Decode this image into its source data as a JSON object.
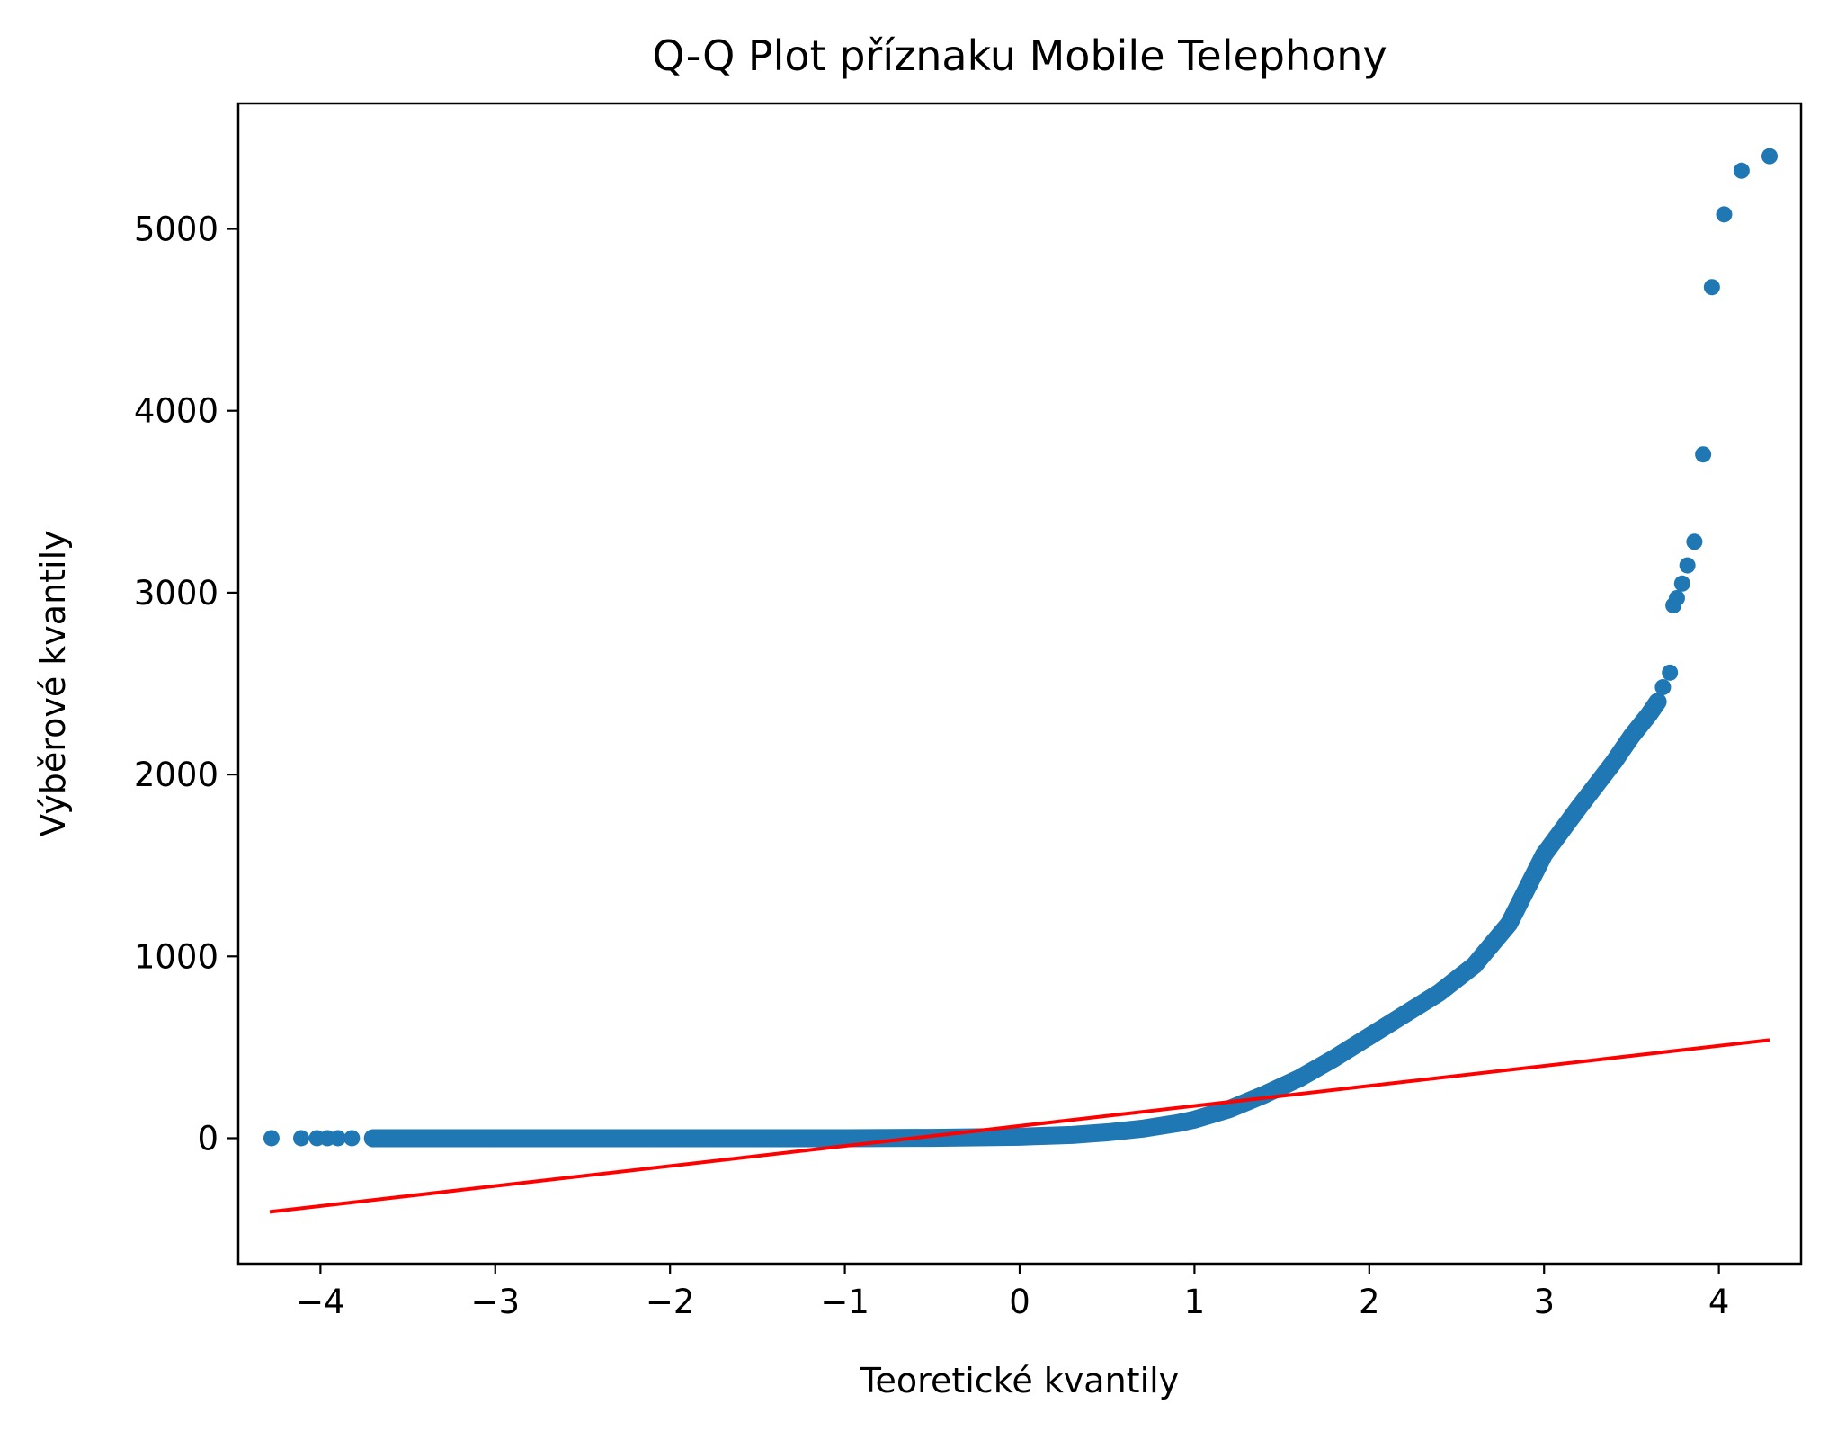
{
  "chart_data": {
    "type": "scatter",
    "title": "Q-Q Plot příznaku Mobile Telephony",
    "xlabel": "Teoretické kvantily",
    "ylabel": "Výběrové kvantily",
    "xlim": [
      -4.47,
      4.47
    ],
    "ylim": [
      -690,
      5690
    ],
    "x_ticks": [
      -4,
      -3,
      -2,
      -1,
      0,
      1,
      2,
      3,
      4
    ],
    "x_tick_labels": [
      "−4",
      "−3",
      "−2",
      "−1",
      "0",
      "1",
      "2",
      "3",
      "4"
    ],
    "y_ticks": [
      0,
      1000,
      2000,
      3000,
      4000,
      5000
    ],
    "y_tick_labels": [
      "0",
      "1000",
      "2000",
      "3000",
      "4000",
      "5000"
    ],
    "grid": false,
    "series": [
      {
        "name": "sample quantiles",
        "kind": "scatter",
        "color": "#1f77b4",
        "points": [
          [
            -4.28,
            0
          ],
          [
            -4.11,
            0
          ],
          [
            -4.02,
            0
          ],
          [
            -3.96,
            0
          ],
          [
            -3.9,
            0
          ],
          [
            -3.82,
            0
          ],
          [
            -3.7,
            0
          ],
          [
            -3.5,
            0
          ],
          [
            -3.0,
            0
          ],
          [
            -2.5,
            0
          ],
          [
            -2.0,
            0
          ],
          [
            -1.5,
            0
          ],
          [
            -1.0,
            0
          ],
          [
            -0.5,
            2
          ],
          [
            0.0,
            8
          ],
          [
            0.3,
            18
          ],
          [
            0.5,
            32
          ],
          [
            0.7,
            52
          ],
          [
            0.9,
            82
          ],
          [
            1.0,
            102
          ],
          [
            1.2,
            160
          ],
          [
            1.4,
            240
          ],
          [
            1.6,
            330
          ],
          [
            1.8,
            440
          ],
          [
            2.0,
            560
          ],
          [
            2.2,
            680
          ],
          [
            2.4,
            800
          ],
          [
            2.6,
            950
          ],
          [
            2.8,
            1180
          ],
          [
            3.0,
            1560
          ],
          [
            3.2,
            1820
          ],
          [
            3.4,
            2070
          ],
          [
            3.5,
            2210
          ],
          [
            3.6,
            2330
          ],
          [
            3.65,
            2400
          ],
          [
            3.68,
            2480
          ],
          [
            3.72,
            2560
          ],
          [
            3.74,
            2930
          ],
          [
            3.76,
            2970
          ],
          [
            3.79,
            3050
          ],
          [
            3.82,
            3150
          ],
          [
            3.86,
            3280
          ],
          [
            3.91,
            3760
          ],
          [
            3.96,
            4680
          ],
          [
            4.03,
            5080
          ],
          [
            4.13,
            5320
          ],
          [
            4.29,
            5400
          ]
        ]
      },
      {
        "name": "reference line",
        "kind": "line",
        "color": "#ff0000",
        "points": [
          [
            -4.29,
            -405
          ],
          [
            4.29,
            540
          ]
        ]
      }
    ]
  }
}
